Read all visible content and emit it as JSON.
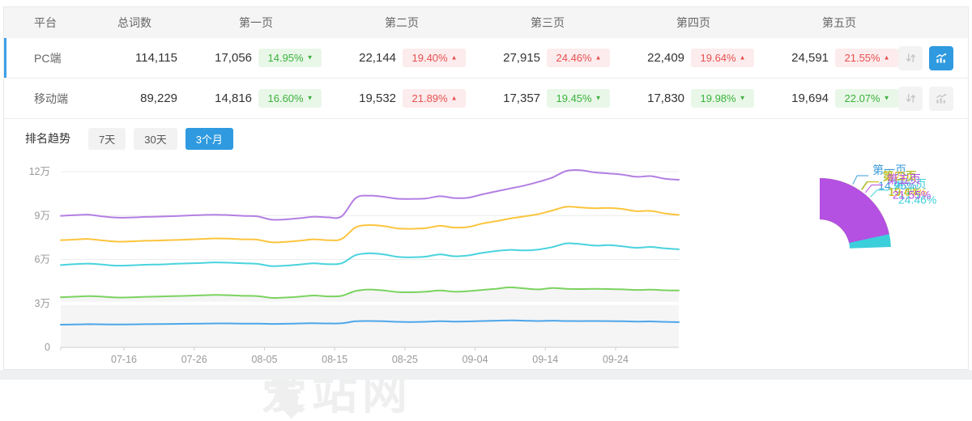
{
  "table": {
    "headers": [
      "平台",
      "总词数",
      "第一页",
      "第二页",
      "第三页",
      "第四页",
      "第五页"
    ],
    "rows": [
      {
        "platform": "PC端",
        "total": "114,115",
        "pages": [
          {
            "count": "17,056",
            "pct": "14.95%",
            "dir": "down"
          },
          {
            "count": "22,144",
            "pct": "19.40%",
            "dir": "up"
          },
          {
            "count": "27,915",
            "pct": "24.46%",
            "dir": "up"
          },
          {
            "count": "22,409",
            "pct": "19.64%",
            "dir": "up"
          },
          {
            "count": "24,591",
            "pct": "21.55%",
            "dir": "up"
          }
        ]
      },
      {
        "platform": "移动端",
        "total": "89,229",
        "pages": [
          {
            "count": "14,816",
            "pct": "16.60%",
            "dir": "down"
          },
          {
            "count": "19,532",
            "pct": "21.89%",
            "dir": "up"
          },
          {
            "count": "17,357",
            "pct": "19.45%",
            "dir": "down"
          },
          {
            "count": "17,830",
            "pct": "19.98%",
            "dir": "down"
          },
          {
            "count": "19,694",
            "pct": "22.07%",
            "dir": "down"
          }
        ]
      }
    ]
  },
  "trend": {
    "title": "排名趋势",
    "tabs": [
      {
        "label": "7天"
      },
      {
        "label": "30天"
      },
      {
        "label": "3个月"
      }
    ],
    "active_tab": "3个月"
  },
  "icons": {
    "arrow_up": "▲",
    "arrow_down": "▼"
  },
  "watermark": {
    "text": "爱站网"
  },
  "colors": {
    "accent_blue": "#2f9adf",
    "badge_up_text": "#e75050",
    "badge_up_bg": "#fdeced",
    "badge_down_text": "#3cb23c",
    "badge_down_bg": "#e9f7e9",
    "selected_row_bar": "#3e9fe8"
  },
  "chart_data": [
    {
      "type": "line",
      "title": "排名趋势 3个月",
      "stacked": true,
      "note": "values are cumulative keyword counts in 万 (10k), bottom-up stack: 第一页..第五页",
      "grid": true,
      "x_ticks": [
        "07-16",
        "07-26",
        "08-05",
        "08-15",
        "08-25",
        "09-04",
        "09-14",
        "09-24"
      ],
      "x_tick_days": [
        9,
        19,
        29,
        39,
        49,
        59,
        69,
        79
      ],
      "total_days": 88,
      "y_ticks": [
        {
          "v": 0,
          "label": "0"
        },
        {
          "v": 3,
          "label": "3万"
        },
        {
          "v": 6,
          "label": "6万"
        },
        {
          "v": 9,
          "label": "9万"
        },
        {
          "v": 12,
          "label": "12万"
        }
      ],
      "ylim": [
        0,
        13
      ],
      "series": [
        {
          "name": "第二页",
          "color": "#7bd35f",
          "area": true,
          "values": [
            3.42,
            3.46,
            3.5,
            3.46,
            3.4,
            3.42,
            3.45,
            3.47,
            3.5,
            3.52,
            3.55,
            3.58,
            3.56,
            3.52,
            3.5,
            3.38,
            3.4,
            3.46,
            3.54,
            3.48,
            3.52,
            3.85,
            3.95,
            3.88,
            3.78,
            3.76,
            3.8,
            3.88,
            3.8,
            3.84,
            3.92,
            4.0,
            4.1,
            4.02,
            3.96,
            4.05,
            4.0,
            3.98,
            4.0,
            3.98,
            3.96,
            3.92,
            3.94,
            3.9,
            3.88
          ]
        },
        {
          "name": "第一页",
          "color": "#4da6ea",
          "area": false,
          "values": [
            1.55,
            1.56,
            1.58,
            1.57,
            1.56,
            1.57,
            1.58,
            1.59,
            1.6,
            1.61,
            1.62,
            1.63,
            1.63,
            1.62,
            1.62,
            1.6,
            1.61,
            1.63,
            1.65,
            1.63,
            1.64,
            1.78,
            1.8,
            1.78,
            1.74,
            1.73,
            1.75,
            1.78,
            1.76,
            1.77,
            1.8,
            1.82,
            1.84,
            1.82,
            1.8,
            1.82,
            1.8,
            1.79,
            1.8,
            1.79,
            1.78,
            1.76,
            1.77,
            1.74,
            1.72
          ]
        },
        {
          "name": "第三页",
          "color": "#49d3de",
          "area": false,
          "values": [
            5.62,
            5.68,
            5.72,
            5.65,
            5.58,
            5.6,
            5.64,
            5.66,
            5.7,
            5.73,
            5.76,
            5.8,
            5.78,
            5.74,
            5.7,
            5.55,
            5.58,
            5.66,
            5.74,
            5.68,
            5.74,
            6.3,
            6.42,
            6.35,
            6.18,
            6.15,
            6.2,
            6.35,
            6.22,
            6.28,
            6.45,
            6.58,
            6.66,
            6.62,
            6.68,
            6.85,
            7.1,
            7.05,
            6.95,
            6.98,
            6.9,
            6.8,
            6.86,
            6.76,
            6.7
          ]
        },
        {
          "name": "第四页",
          "color": "#fbc53d",
          "area": false,
          "values": [
            7.32,
            7.36,
            7.4,
            7.3,
            7.22,
            7.24,
            7.28,
            7.3,
            7.33,
            7.36,
            7.4,
            7.44,
            7.42,
            7.38,
            7.35,
            7.18,
            7.2,
            7.28,
            7.38,
            7.32,
            7.4,
            8.2,
            8.35,
            8.28,
            8.12,
            8.1,
            8.14,
            8.3,
            8.18,
            8.22,
            8.45,
            8.62,
            8.8,
            8.95,
            9.1,
            9.35,
            9.6,
            9.55,
            9.5,
            9.52,
            9.45,
            9.3,
            9.32,
            9.15,
            9.05
          ]
        },
        {
          "name": "第五页",
          "color": "#b37fe3",
          "area": false,
          "values": [
            8.98,
            9.03,
            9.06,
            8.94,
            8.86,
            8.87,
            8.91,
            8.93,
            8.96,
            9.0,
            9.04,
            9.06,
            9.03,
            8.98,
            8.95,
            8.72,
            8.74,
            8.82,
            8.92,
            8.88,
            8.95,
            10.2,
            10.36,
            10.28,
            10.15,
            10.14,
            10.17,
            10.32,
            10.2,
            10.22,
            10.45,
            10.65,
            10.85,
            11.05,
            11.3,
            11.6,
            12.05,
            12.1,
            11.95,
            11.88,
            11.8,
            11.65,
            11.7,
            11.52,
            11.45
          ]
        }
      ]
    },
    {
      "type": "pie",
      "donut": true,
      "slices": [
        {
          "name": "第一页",
          "value": 14.95,
          "label": "14.95%",
          "color": "#3b9bd8"
        },
        {
          "name": "第二页",
          "value": 19.4,
          "label": "19.4%",
          "color": "#56c43c"
        },
        {
          "name": "第三页",
          "value": 24.46,
          "label": "24.46%",
          "color": "#3bcfdb"
        },
        {
          "name": "第四页",
          "value": 19.64,
          "label": "19.64%",
          "color": "#f5bb2e"
        },
        {
          "name": "第五页",
          "value": 21.55,
          "label": "21.55%",
          "color": "#b450e2"
        }
      ]
    }
  ]
}
